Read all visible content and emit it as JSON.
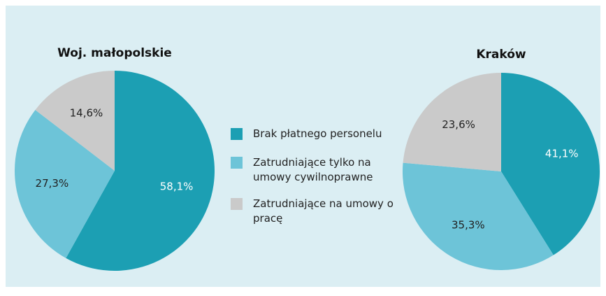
{
  "legend": {
    "labels": [
      "Brak płatnego personelu",
      "Zatrudniające tylko na umowy cywilnoprawne",
      "Zatrudniające na umowy o pracę"
    ],
    "colors": [
      "#1c9fb3",
      "#6dc4d8",
      "#cacaca"
    ]
  },
  "chart_data": [
    {
      "type": "pie",
      "title": "Woj. małopolskie",
      "values": [
        58.1,
        27.3,
        14.6
      ],
      "value_labels": [
        "58,1%",
        "27,3%",
        "14,6%"
      ]
    },
    {
      "type": "pie",
      "title": "Kraków",
      "values": [
        41.1,
        35.3,
        23.6
      ],
      "value_labels": [
        "41,1%",
        "35,3%",
        "23,6%"
      ]
    }
  ]
}
